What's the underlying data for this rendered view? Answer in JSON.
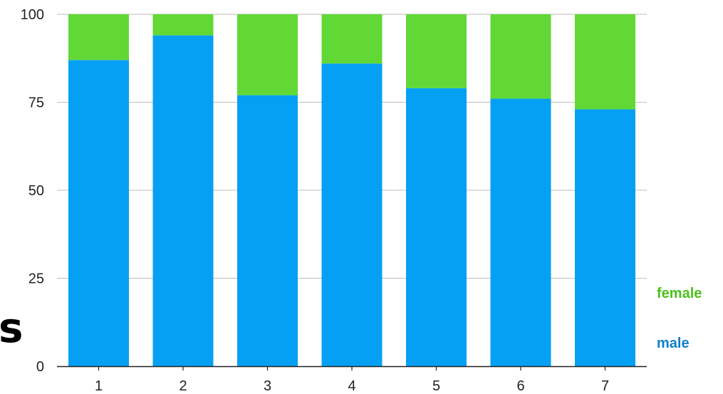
{
  "chart_data": {
    "type": "bar",
    "stacked": true,
    "categories": [
      "1",
      "2",
      "3",
      "4",
      "5",
      "6",
      "7"
    ],
    "series": [
      {
        "name": "male",
        "color": "#05a0f3",
        "values": [
          87,
          94,
          77,
          86,
          79,
          76,
          73
        ]
      },
      {
        "name": "female",
        "color": "#61d836",
        "values": [
          13,
          6,
          23,
          14,
          21,
          24,
          27
        ]
      }
    ],
    "ylim": [
      0,
      100
    ],
    "yticks": [
      "0",
      "25",
      "50",
      "75",
      "100"
    ],
    "grid": true,
    "legend_position": "right-bottom"
  },
  "legend": {
    "female_label": "female",
    "male_label": "male",
    "female_color": "#4cbf1b",
    "male_color": "#0f7fc8"
  },
  "stray_glyph": "s"
}
